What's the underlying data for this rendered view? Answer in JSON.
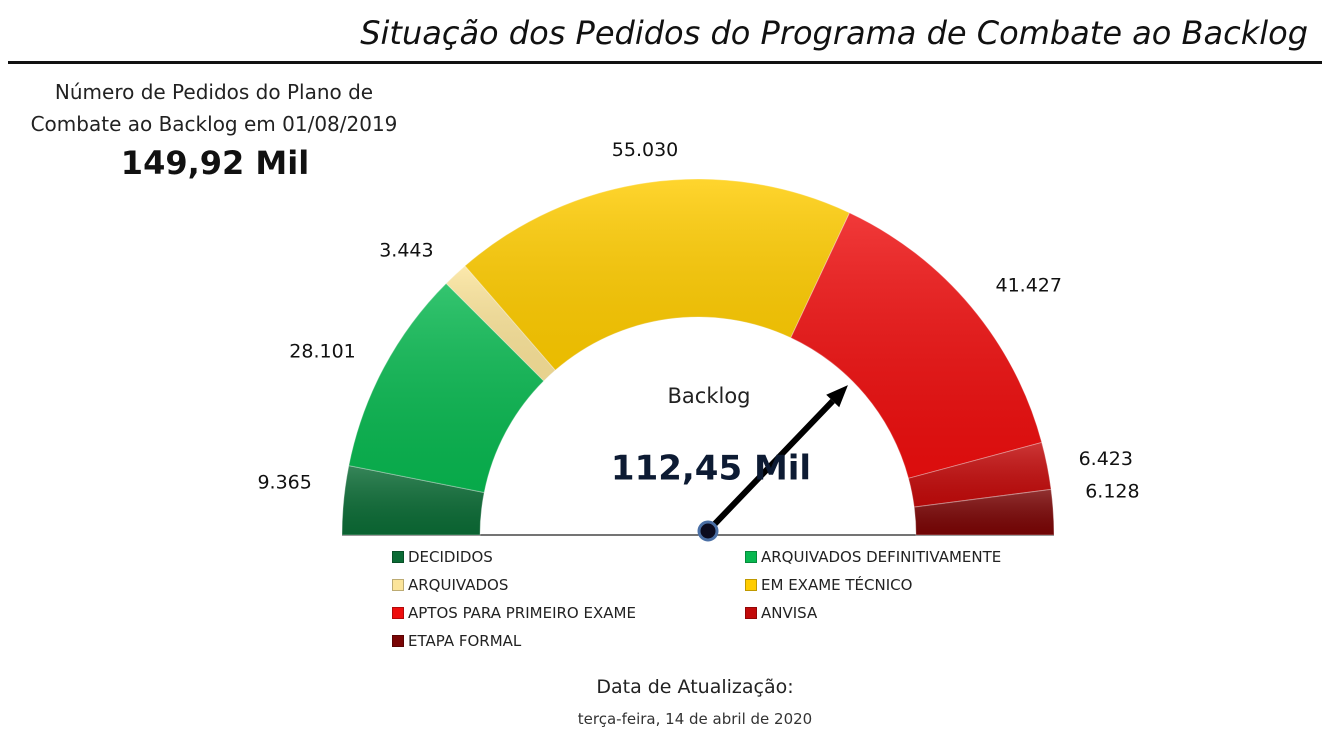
{
  "title": "Situação dos Pedidos do Programa de Combate ao Backlog",
  "kpi": {
    "label": "Número de Pedidos do Plano de Combate ao Backlog em 01/08/2019",
    "value": "149,92 Mil"
  },
  "chart_data": {
    "type": "gauge",
    "title": "Situação dos Pedidos do Programa de Combate ao Backlog",
    "center_label": "Backlog",
    "center_value": "112,45 Mil",
    "needle_value": 112450,
    "max_value": 149917,
    "segments": [
      {
        "name": "DECIDIDOS",
        "value": 9365,
        "label": "9.365",
        "color": "#0b6b35"
      },
      {
        "name": "ARQUIVADOS DEFINITIVAMENTE",
        "value": 28101,
        "label": "28.101",
        "color": "#08b850"
      },
      {
        "name": "ARQUIVADOS",
        "value": 3443,
        "label": "3.443",
        "color": "#fbe49a"
      },
      {
        "name": "EM EXAME TÉCNICO",
        "value": 55030,
        "label": "55.030",
        "color": "#ffcc00"
      },
      {
        "name": "APTOS PARA PRIMEIRO EXAME",
        "value": 41427,
        "label": "41.427",
        "color": "#ee0e0e"
      },
      {
        "name": "ANVISA",
        "value": 6423,
        "label": "6.423",
        "color": "#c20a0a"
      },
      {
        "name": "ETAPA FORMAL",
        "value": 6128,
        "label": "6.128",
        "color": "#7a0505"
      }
    ]
  },
  "update": {
    "label": "Data de Atualização:",
    "date": "terça-feira, 14 de abril de 2020"
  }
}
